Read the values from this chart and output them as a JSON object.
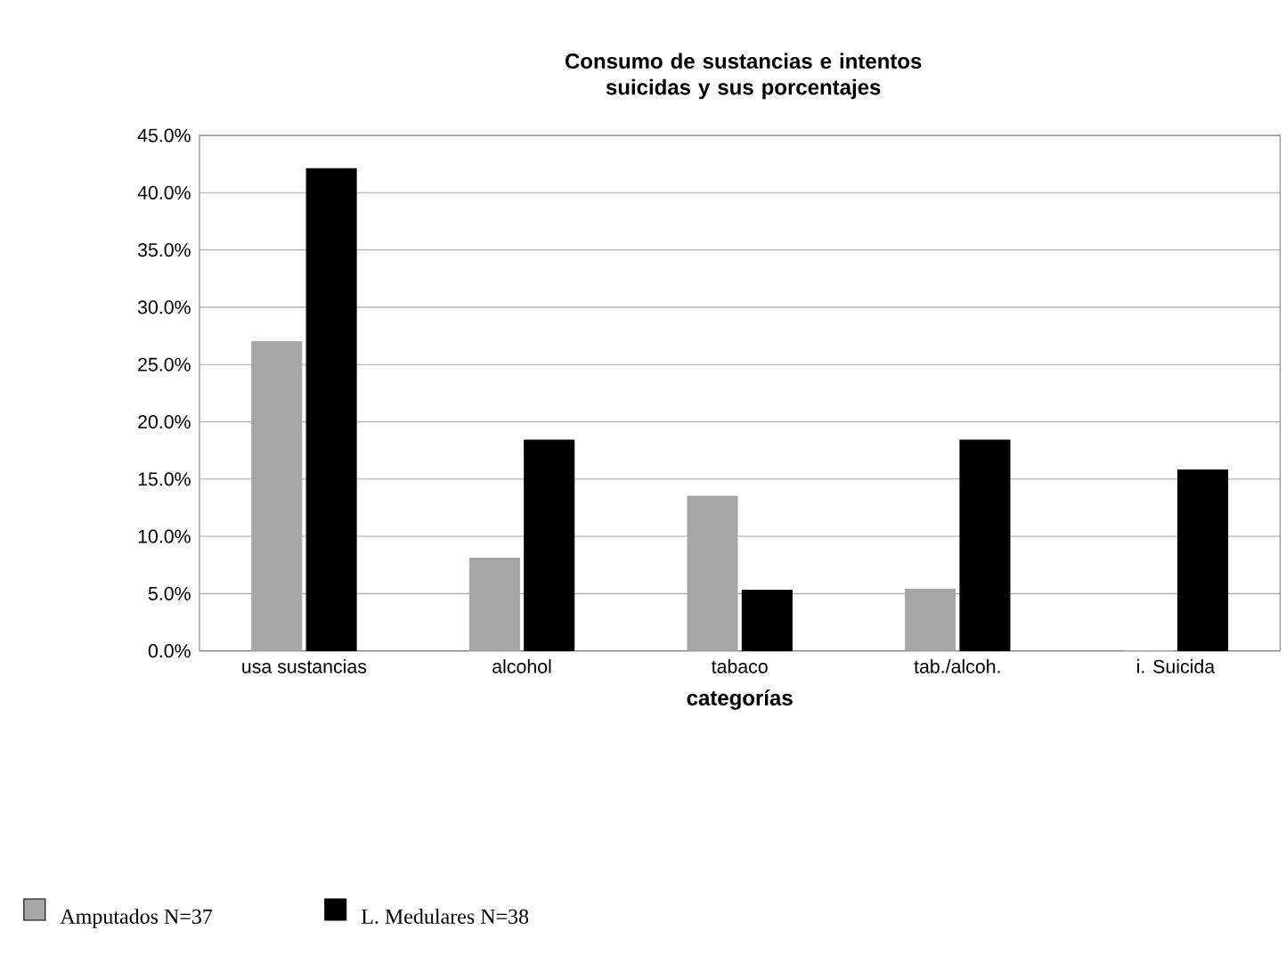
{
  "chart_data": {
    "type": "bar",
    "title": "Consumo de sustancias e intentos suicidas y sus porcentajes",
    "xlabel": "categorías",
    "categories": [
      "usa sustancias",
      "alcohol",
      "tabaco",
      "tab./alcoh.",
      "i. Suicida"
    ],
    "series": [
      {
        "name": "Amputados N=37",
        "color": "#a6a6a6",
        "values": [
          27.0,
          8.1,
          13.5,
          5.4,
          0
        ]
      },
      {
        "name": "L. Medulares N=38",
        "color": "#000000",
        "values": [
          42.1,
          18.4,
          5.3,
          18.4,
          15.8
        ]
      }
    ],
    "ylim": [
      0,
      45
    ],
    "yticks": [
      {
        "value": 0,
        "label": "0.0%"
      },
      {
        "value": 5,
        "label": "5.0%"
      },
      {
        "value": 10,
        "label": "10.0%"
      },
      {
        "value": 15,
        "label": "15.0%"
      },
      {
        "value": 20,
        "label": "20.0%"
      },
      {
        "value": 25,
        "label": "25.0%"
      },
      {
        "value": 30,
        "label": "30.0%"
      },
      {
        "value": 35,
        "label": "35.0%"
      },
      {
        "value": 40,
        "label": "40.0%"
      },
      {
        "value": 45,
        "label": "45.0%"
      }
    ],
    "grid": "y",
    "legend": "bottom"
  }
}
